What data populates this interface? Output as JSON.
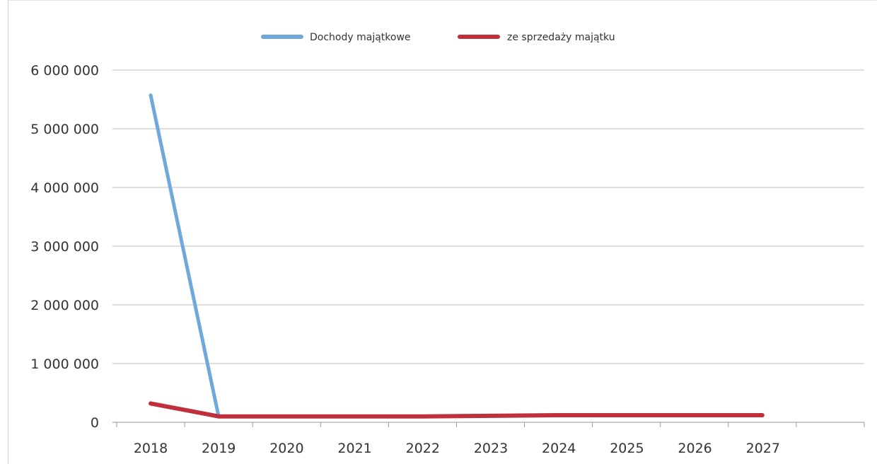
{
  "chart_data": {
    "type": "line",
    "title": "",
    "xlabel": "",
    "ylabel": "",
    "categories": [
      "2018",
      "2019",
      "2020",
      "2021",
      "2022",
      "2023",
      "2024",
      "2025",
      "2026",
      "2027"
    ],
    "ylim": [
      0,
      6000000
    ],
    "yticks": [
      0,
      1000000,
      2000000,
      3000000,
      4000000,
      5000000,
      6000000
    ],
    "ytick_labels": [
      "0",
      "1 000 000",
      "2 000 000",
      "3 000 000",
      "4 000 000",
      "5 000 000",
      "6 000 000"
    ],
    "grid": true,
    "legend_position": "top",
    "series": [
      {
        "name": "Dochody majątkowe",
        "color": "#6fa8dc",
        "values": [
          5570000,
          100000,
          100000,
          100000,
          100000,
          110000,
          120000,
          120000,
          120000,
          120000
        ]
      },
      {
        "name": "ze sprzedaży majątku",
        "color": "#c0303c",
        "values": [
          320000,
          100000,
          100000,
          100000,
          100000,
          110000,
          120000,
          120000,
          120000,
          120000
        ]
      }
    ]
  }
}
